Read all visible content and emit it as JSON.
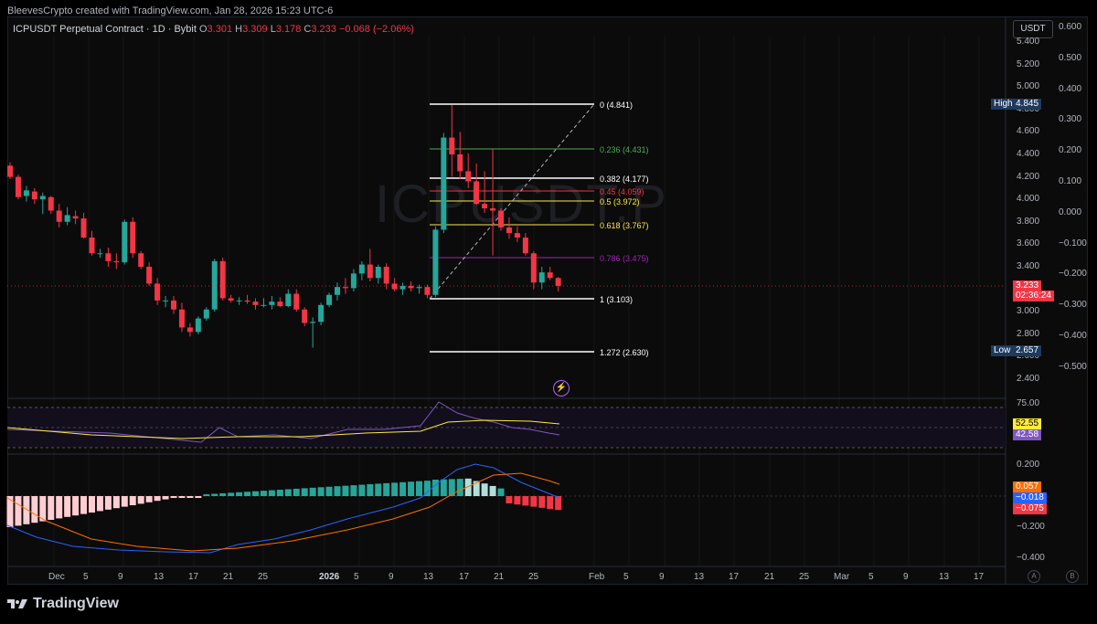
{
  "header": {
    "attribution": "BleevesCrypto created with TradingView.com, Jan 28, 2026 15:23 UTC-6"
  },
  "legend": {
    "symbol": "ICPUSDT Perpetual Contract · 1D · Bybit",
    "o_label": "O",
    "o_value": "3.301",
    "h_label": "H",
    "h_value": "3.309",
    "l_label": "L",
    "l_value": "3.178",
    "c_label": "C",
    "c_value": "3.233",
    "change": "−0.068 (−2.06%)"
  },
  "watermark": "ICPUSDT.P",
  "currency_button": "USDT",
  "price_axis": {
    "ticks": [
      "5.400",
      "5.200",
      "5.000",
      "4.800",
      "4.600",
      "4.400",
      "4.200",
      "4.000",
      "3.800",
      "3.600",
      "3.400",
      "3.200",
      "3.000",
      "2.800",
      "2.600",
      "2.400"
    ]
  },
  "right_axis": {
    "ticks": [
      "0.600",
      "0.500",
      "0.400",
      "0.300",
      "0.200",
      "0.100",
      "0.000",
      "−0.100",
      "−0.200",
      "−0.300",
      "−0.400",
      "−0.500"
    ]
  },
  "high_tag": {
    "label": "High",
    "value": "4.845"
  },
  "low_tag": {
    "label": "Low",
    "value": "2.657"
  },
  "last_price_tag": {
    "value": "3.233",
    "countdown": "02:36:24"
  },
  "fib_levels": [
    {
      "text": "0 (4.841)",
      "color": "#ffffff"
    },
    {
      "text": "0.236 (4.431)",
      "color": "#4caf50"
    },
    {
      "text": "0.382 (4.177)",
      "color": "#ffffff"
    },
    {
      "text": "0.45 (4.059)",
      "color": "#f23645"
    },
    {
      "text": "0.5 (3.972)",
      "color": "#ffeb3b"
    },
    {
      "text": "0.618 (3.767)",
      "color": "#ffeb3b"
    },
    {
      "text": "0.786 (3.475)",
      "color": "#9c27b0"
    },
    {
      "text": "1 (3.103)",
      "color": "#ffffff"
    },
    {
      "text": "1.272 (2.630)",
      "color": "#ffffff"
    }
  ],
  "rsi_pane": {
    "upper": "75.00",
    "tag1": "52.55",
    "tag2": "42.58"
  },
  "macd_pane": {
    "ticks": [
      "0.200",
      "−0.200",
      "−0.400"
    ],
    "tag_macd_signal": "0.057",
    "tag_macd": "−0.018",
    "tag_hist": "−0.075"
  },
  "time_axis": {
    "ticks": [
      "Dec",
      "5",
      "9",
      "13",
      "17",
      "21",
      "25",
      "2026",
      "5",
      "9",
      "13",
      "17",
      "21",
      "25",
      "Feb",
      "5",
      "9",
      "13",
      "17",
      "21",
      "25",
      "Mar",
      "5",
      "9",
      "13",
      "17"
    ]
  },
  "ab_buttons": [
    "A",
    "B"
  ],
  "footer": {
    "brand": "TradingView"
  },
  "colors": {
    "up": "#26a69a",
    "down": "#f23645",
    "bg": "#0b0b0b",
    "grid": "#1c1c1c"
  },
  "chart_data": {
    "type": "candlestick",
    "title": "ICPUSDT Perpetual Contract · 1D · Bybit",
    "candles": [
      {
        "o": 4.3,
        "h": 4.33,
        "l": 4.18,
        "c": 4.2
      },
      {
        "o": 4.2,
        "h": 4.22,
        "l": 4.0,
        "c": 4.02
      },
      {
        "o": 4.03,
        "h": 4.12,
        "l": 3.98,
        "c": 4.08
      },
      {
        "o": 4.07,
        "h": 4.1,
        "l": 3.96,
        "c": 4.0
      },
      {
        "o": 4.0,
        "h": 4.06,
        "l": 3.87,
        "c": 4.03
      },
      {
        "o": 4.02,
        "h": 4.03,
        "l": 3.87,
        "c": 3.9
      },
      {
        "o": 3.9,
        "h": 3.96,
        "l": 3.75,
        "c": 3.8
      },
      {
        "o": 3.8,
        "h": 3.93,
        "l": 3.77,
        "c": 3.86
      },
      {
        "o": 3.85,
        "h": 3.9,
        "l": 3.78,
        "c": 3.83
      },
      {
        "o": 3.83,
        "h": 3.88,
        "l": 3.65,
        "c": 3.66
      },
      {
        "o": 3.66,
        "h": 3.72,
        "l": 3.5,
        "c": 3.52
      },
      {
        "o": 3.52,
        "h": 3.56,
        "l": 3.48,
        "c": 3.52
      },
      {
        "o": 3.52,
        "h": 3.57,
        "l": 3.4,
        "c": 3.45
      },
      {
        "o": 3.45,
        "h": 3.52,
        "l": 3.38,
        "c": 3.44
      },
      {
        "o": 3.44,
        "h": 3.82,
        "l": 3.42,
        "c": 3.8
      },
      {
        "o": 3.8,
        "h": 3.84,
        "l": 3.48,
        "c": 3.52
      },
      {
        "o": 3.52,
        "h": 3.54,
        "l": 3.38,
        "c": 3.4
      },
      {
        "o": 3.4,
        "h": 3.44,
        "l": 3.23,
        "c": 3.25
      },
      {
        "o": 3.25,
        "h": 3.3,
        "l": 3.06,
        "c": 3.1
      },
      {
        "o": 3.1,
        "h": 3.14,
        "l": 3.04,
        "c": 3.1
      },
      {
        "o": 3.1,
        "h": 3.14,
        "l": 2.98,
        "c": 3.02
      },
      {
        "o": 3.02,
        "h": 3.08,
        "l": 2.82,
        "c": 2.86
      },
      {
        "o": 2.86,
        "h": 2.9,
        "l": 2.78,
        "c": 2.82
      },
      {
        "o": 2.82,
        "h": 2.96,
        "l": 2.8,
        "c": 2.94
      },
      {
        "o": 2.94,
        "h": 3.04,
        "l": 2.92,
        "c": 3.02
      },
      {
        "o": 3.02,
        "h": 3.47,
        "l": 3.0,
        "c": 3.45
      },
      {
        "o": 3.45,
        "h": 3.48,
        "l": 3.1,
        "c": 3.12
      },
      {
        "o": 3.12,
        "h": 3.15,
        "l": 3.08,
        "c": 3.1
      },
      {
        "o": 3.1,
        "h": 3.13,
        "l": 3.06,
        "c": 3.1
      },
      {
        "o": 3.1,
        "h": 3.15,
        "l": 3.07,
        "c": 3.09
      },
      {
        "o": 3.09,
        "h": 3.12,
        "l": 3.02,
        "c": 3.06
      },
      {
        "o": 3.06,
        "h": 3.12,
        "l": 3.04,
        "c": 3.06
      },
      {
        "o": 3.06,
        "h": 3.14,
        "l": 3.02,
        "c": 3.09
      },
      {
        "o": 3.09,
        "h": 3.13,
        "l": 3.04,
        "c": 3.05
      },
      {
        "o": 3.05,
        "h": 3.2,
        "l": 3.04,
        "c": 3.16
      },
      {
        "o": 3.16,
        "h": 3.2,
        "l": 3.0,
        "c": 3.02
      },
      {
        "o": 3.02,
        "h": 3.04,
        "l": 2.87,
        "c": 2.9
      },
      {
        "o": 2.9,
        "h": 2.95,
        "l": 2.68,
        "c": 2.91
      },
      {
        "o": 2.91,
        "h": 3.08,
        "l": 2.88,
        "c": 3.06
      },
      {
        "o": 3.06,
        "h": 3.17,
        "l": 3.04,
        "c": 3.15
      },
      {
        "o": 3.15,
        "h": 3.26,
        "l": 3.1,
        "c": 3.22
      },
      {
        "o": 3.22,
        "h": 3.3,
        "l": 3.16,
        "c": 3.21
      },
      {
        "o": 3.21,
        "h": 3.38,
        "l": 3.18,
        "c": 3.34
      },
      {
        "o": 3.34,
        "h": 3.45,
        "l": 3.28,
        "c": 3.42
      },
      {
        "o": 3.42,
        "h": 3.56,
        "l": 3.27,
        "c": 3.3
      },
      {
        "o": 3.3,
        "h": 3.42,
        "l": 3.25,
        "c": 3.4
      },
      {
        "o": 3.4,
        "h": 3.43,
        "l": 3.2,
        "c": 3.25
      },
      {
        "o": 3.25,
        "h": 3.3,
        "l": 3.18,
        "c": 3.2
      },
      {
        "o": 3.2,
        "h": 3.26,
        "l": 3.15,
        "c": 3.23
      },
      {
        "o": 3.23,
        "h": 3.27,
        "l": 3.18,
        "c": 3.21
      },
      {
        "o": 3.21,
        "h": 3.24,
        "l": 3.16,
        "c": 3.22
      },
      {
        "o": 3.22,
        "h": 3.24,
        "l": 3.12,
        "c": 3.15
      },
      {
        "o": 3.15,
        "h": 3.76,
        "l": 3.13,
        "c": 3.73
      },
      {
        "o": 3.73,
        "h": 4.59,
        "l": 3.7,
        "c": 4.55
      },
      {
        "o": 4.55,
        "h": 4.84,
        "l": 4.2,
        "c": 4.4
      },
      {
        "o": 4.4,
        "h": 4.6,
        "l": 4.18,
        "c": 4.25
      },
      {
        "o": 4.25,
        "h": 4.41,
        "l": 4.1,
        "c": 4.16
      },
      {
        "o": 4.16,
        "h": 4.32,
        "l": 3.95,
        "c": 3.96
      },
      {
        "o": 3.96,
        "h": 4.25,
        "l": 3.88,
        "c": 3.92
      },
      {
        "o": 3.92,
        "h": 4.45,
        "l": 3.5,
        "c": 3.9
      },
      {
        "o": 3.9,
        "h": 3.92,
        "l": 3.72,
        "c": 3.75
      },
      {
        "o": 3.75,
        "h": 3.84,
        "l": 3.65,
        "c": 3.7
      },
      {
        "o": 3.7,
        "h": 3.76,
        "l": 3.62,
        "c": 3.66
      },
      {
        "o": 3.66,
        "h": 3.7,
        "l": 3.5,
        "c": 3.52
      },
      {
        "o": 3.52,
        "h": 3.54,
        "l": 3.2,
        "c": 3.26
      },
      {
        "o": 3.26,
        "h": 3.4,
        "l": 3.2,
        "c": 3.35
      },
      {
        "o": 3.35,
        "h": 3.4,
        "l": 3.28,
        "c": 3.3
      },
      {
        "o": 3.3,
        "h": 3.31,
        "l": 3.18,
        "c": 3.23
      }
    ],
    "ylim": [
      2.3,
      5.5
    ],
    "high": 4.845,
    "low": 2.657
  }
}
